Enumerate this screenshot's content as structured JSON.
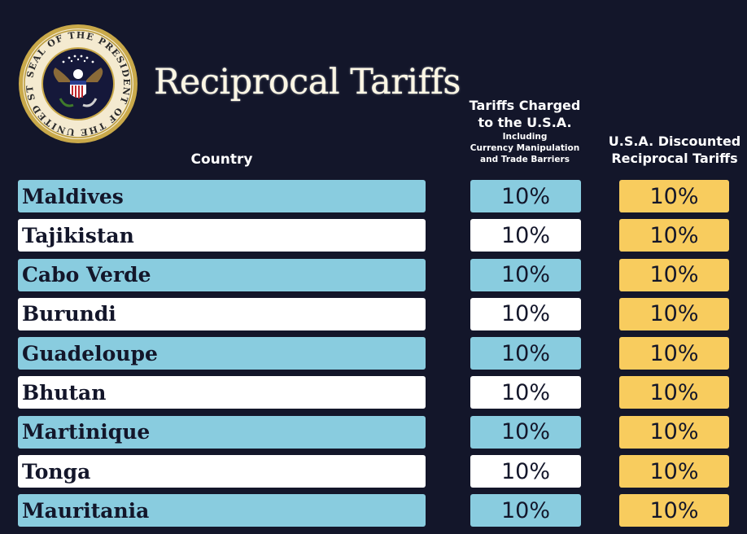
{
  "header": {
    "title": "Reciprocal Tariffs",
    "seal_text": "SEAL OF THE PRESIDENT OF THE UNITED STATES"
  },
  "columns": {
    "country": "Country",
    "charged_line1": "Tariffs Charged",
    "charged_line2": "to the U.S.A.",
    "charged_sub1": "Including",
    "charged_sub2": "Currency Manipulation",
    "charged_sub3": "and Trade Barriers",
    "discounted_line1": "U.S.A. Discounted",
    "discounted_line2": "Reciprocal Tariffs"
  },
  "rows": [
    {
      "country": "Maldives",
      "charged": "10%",
      "discounted": "10%"
    },
    {
      "country": "Tajikistan",
      "charged": "10%",
      "discounted": "10%"
    },
    {
      "country": "Cabo Verde",
      "charged": "10%",
      "discounted": "10%"
    },
    {
      "country": "Burundi",
      "charged": "10%",
      "discounted": "10%"
    },
    {
      "country": "Guadeloupe",
      "charged": "10%",
      "discounted": "10%"
    },
    {
      "country": "Bhutan",
      "charged": "10%",
      "discounted": "10%"
    },
    {
      "country": "Martinique",
      "charged": "10%",
      "discounted": "10%"
    },
    {
      "country": "Tonga",
      "charged": "10%",
      "discounted": "10%"
    },
    {
      "country": "Mauritania",
      "charged": "10%",
      "discounted": "10%"
    }
  ],
  "colors": {
    "background": "#13162a",
    "row_blue": "#89ccdf",
    "row_white": "#ffffff",
    "discount_yellow": "#f8cc5e"
  }
}
